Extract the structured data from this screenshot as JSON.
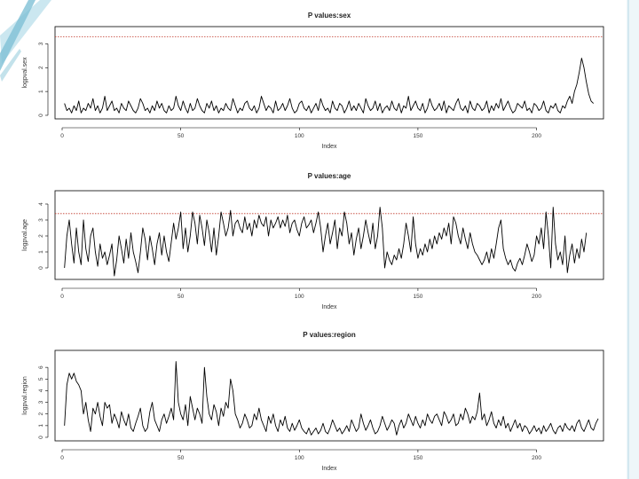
{
  "colors": {
    "series": "#000000",
    "threshold": "#c0392b",
    "slide_accent": "#9fd0df"
  },
  "chart_data": [
    {
      "type": "line",
      "title": "P values:sex",
      "xlabel": "Index",
      "ylabel": "logpval.sex",
      "xlim": [
        0,
        220
      ],
      "ylim": [
        0,
        3.5
      ],
      "xticks": [
        "0",
        "50",
        "100",
        "150",
        "200"
      ],
      "yticks": [
        "0",
        "1",
        "2",
        "3"
      ],
      "threshold": 3.3,
      "y": [
        0.5,
        0.2,
        0.3,
        0.1,
        0.4,
        0.2,
        0.6,
        0.1,
        0.3,
        0.2,
        0.5,
        0.3,
        0.7,
        0.2,
        0.4,
        0.1,
        0.3,
        0.8,
        0.2,
        0.4,
        0.6,
        0.2,
        0.3,
        0.1,
        0.5,
        0.3,
        0.2,
        0.6,
        0.4,
        0.2,
        0.1,
        0.3,
        0.7,
        0.5,
        0.2,
        0.3,
        0.1,
        0.4,
        0.2,
        0.6,
        0.3,
        0.5,
        0.2,
        0.1,
        0.4,
        0.2,
        0.3,
        0.8,
        0.4,
        0.2,
        0.6,
        0.3,
        0.1,
        0.5,
        0.2,
        0.3,
        0.7,
        0.4,
        0.2,
        0.1,
        0.5,
        0.3,
        0.6,
        0.2,
        0.4,
        0.1,
        0.3,
        0.2,
        0.5,
        0.3,
        0.2,
        0.7,
        0.4,
        0.1,
        0.3,
        0.2,
        0.5,
        0.6,
        0.3,
        0.2,
        0.4,
        0.1,
        0.3,
        0.8,
        0.5,
        0.2,
        0.4,
        0.3,
        0.1,
        0.6,
        0.2,
        0.3,
        0.5,
        0.2,
        0.4,
        0.7,
        0.3,
        0.1,
        0.2,
        0.5,
        0.6,
        0.3,
        0.2,
        0.4,
        0.1,
        0.3,
        0.5,
        0.2,
        0.7,
        0.4,
        0.2,
        0.3,
        0.1,
        0.6,
        0.3,
        0.2,
        0.5,
        0.4,
        0.1,
        0.3,
        0.6,
        0.2,
        0.4,
        0.2,
        0.5,
        0.3,
        0.1,
        0.7,
        0.4,
        0.2,
        0.3,
        0.6,
        0.2,
        0.5,
        0.1,
        0.3,
        0.4,
        0.2,
        0.6,
        0.3,
        0.2,
        0.5,
        0.1,
        0.4,
        0.3,
        0.8,
        0.2,
        0.4,
        0.6,
        0.3,
        0.2,
        0.5,
        0.1,
        0.3,
        0.7,
        0.4,
        0.2,
        0.3,
        0.5,
        0.2,
        0.6,
        0.1,
        0.4,
        0.3,
        0.2,
        0.5,
        0.7,
        0.3,
        0.2,
        0.4,
        0.1,
        0.6,
        0.3,
        0.2,
        0.5,
        0.4,
        0.2,
        0.3,
        0.6,
        0.1,
        0.4,
        0.2,
        0.5,
        0.3,
        0.7,
        0.2,
        0.4,
        0.6,
        0.3,
        0.1,
        0.2,
        0.5,
        0.4,
        0.3,
        0.6,
        0.2,
        0.3,
        0.1,
        0.5,
        0.4,
        0.2,
        0.3,
        0.6,
        0.2,
        0.1,
        0.4,
        0.3,
        0.5,
        0.2,
        0.1,
        0.4,
        0.3,
        0.6,
        0.8,
        0.5,
        1.0,
        1.3,
        1.8,
        2.4,
        2.0,
        1.4,
        0.9,
        0.6,
        0.5
      ]
    },
    {
      "type": "line",
      "title": "P values:age",
      "xlabel": "Index",
      "ylabel": "logpval.age",
      "xlim": [
        0,
        220
      ],
      "ylim": [
        -0.5,
        4.5
      ],
      "xticks": [
        "0",
        "50",
        "100",
        "150",
        "200"
      ],
      "yticks": [
        "0",
        "1",
        "2",
        "3",
        "4"
      ],
      "threshold": 3.4,
      "y": [
        0.0,
        2.0,
        3.0,
        1.5,
        0.3,
        2.5,
        1.0,
        0.2,
        3.0,
        1.2,
        0.4,
        2.0,
        2.5,
        1.0,
        0.1,
        1.5,
        0.6,
        1.0,
        0.2,
        0.8,
        1.5,
        -0.5,
        0.5,
        2.0,
        1.2,
        0.3,
        1.8,
        0.6,
        2.2,
        1.0,
        0.4,
        -0.3,
        1.0,
        2.5,
        1.8,
        0.5,
        2.0,
        1.2,
        0.2,
        1.5,
        2.2,
        0.8,
        2.0,
        1.0,
        0.4,
        1.6,
        2.8,
        1.8,
        2.5,
        3.5,
        1.2,
        2.5,
        1.0,
        2.0,
        3.5,
        2.8,
        1.5,
        3.3,
        2.5,
        1.4,
        3.0,
        2.2,
        1.0,
        2.5,
        0.8,
        2.0,
        3.5,
        2.8,
        2.0,
        2.5,
        3.6,
        2.0,
        2.8,
        3.0,
        2.5,
        2.2,
        3.2,
        2.4,
        2.8,
        2.0,
        3.0,
        2.5,
        3.3,
        2.8,
        2.6,
        3.2,
        2.0,
        3.0,
        2.5,
        2.8,
        3.2,
        2.5,
        3.0,
        2.6,
        3.3,
        2.2,
        2.8,
        3.0,
        2.4,
        2.0,
        2.8,
        3.2,
        2.5,
        2.7,
        3.0,
        2.2,
        2.8,
        3.5,
        2.5,
        1.0,
        2.0,
        2.8,
        1.5,
        2.2,
        3.0,
        1.2,
        2.5,
        2.0,
        3.5,
        2.8,
        1.5,
        2.2,
        0.8,
        1.8,
        2.5,
        1.2,
        2.0,
        3.0,
        2.2,
        1.5,
        2.8,
        1.2,
        2.0,
        3.8,
        2.5,
        0.0,
        1.0,
        0.5,
        0.2,
        0.8,
        0.5,
        1.2,
        0.6,
        1.5,
        2.8,
        2.0,
        1.0,
        3.2,
        1.5,
        0.6,
        1.2,
        0.8,
        1.5,
        1.0,
        1.8,
        1.2,
        2.0,
        1.5,
        2.2,
        1.8,
        2.5,
        2.0,
        2.8,
        1.5,
        3.2,
        2.8,
        2.0,
        1.5,
        2.5,
        1.8,
        1.2,
        2.2,
        1.5,
        1.0,
        0.8,
        0.5,
        0.2,
        0.5,
        1.0,
        0.3,
        1.2,
        0.6,
        1.5,
        2.5,
        3.0,
        1.2,
        0.6,
        0.2,
        0.5,
        0.0,
        -0.2,
        0.3,
        0.6,
        0.2,
        0.8,
        1.5,
        1.0,
        0.4,
        0.8,
        2.0,
        1.5,
        2.5,
        1.2,
        3.5,
        2.0,
        0.0,
        3.8,
        1.5,
        0.5,
        1.0,
        0.2,
        2.0,
        -0.3,
        0.8,
        1.5,
        0.3,
        1.2,
        0.6,
        1.8,
        1.0,
        2.2
      ]
    },
    {
      "type": "line",
      "title": "P values:region",
      "xlabel": "Index",
      "ylabel": "logpval.region",
      "xlim": [
        0,
        220
      ],
      "ylim": [
        0,
        7
      ],
      "xticks": [
        "0",
        "50",
        "100",
        "150",
        "200"
      ],
      "yticks": [
        "0",
        "1",
        "2",
        "3",
        "4",
        "5",
        "6"
      ],
      "y": [
        1.0,
        4.5,
        5.5,
        5.0,
        5.5,
        4.8,
        4.5,
        4.0,
        2.0,
        3.0,
        1.5,
        0.5,
        2.5,
        2.0,
        3.0,
        1.8,
        1.0,
        3.0,
        2.5,
        2.8,
        1.2,
        2.0,
        1.5,
        0.8,
        2.2,
        1.5,
        1.0,
        2.0,
        0.8,
        0.5,
        1.2,
        1.8,
        2.5,
        1.0,
        0.5,
        0.8,
        2.2,
        3.0,
        1.5,
        1.0,
        0.5,
        1.5,
        2.0,
        1.2,
        1.8,
        2.5,
        1.5,
        6.5,
        3.0,
        2.0,
        1.5,
        2.8,
        1.0,
        3.5,
        2.5,
        1.5,
        2.5,
        2.0,
        1.2,
        6.0,
        3.5,
        2.0,
        1.5,
        2.8,
        2.2,
        1.0,
        2.5,
        1.8,
        3.0,
        2.5,
        5.0,
        4.0,
        2.0,
        1.5,
        0.8,
        1.2,
        2.0,
        1.5,
        0.8,
        1.0,
        2.0,
        1.5,
        2.5,
        1.5,
        1.0,
        0.5,
        1.8,
        1.2,
        2.0,
        1.0,
        0.5,
        1.5,
        1.0,
        1.8,
        0.8,
        0.5,
        1.2,
        0.6,
        1.0,
        1.5,
        0.8,
        0.5,
        0.3,
        0.8,
        0.2,
        0.5,
        0.8,
        0.3,
        0.6,
        1.2,
        0.5,
        0.3,
        0.8,
        1.5,
        1.0,
        0.5,
        0.8,
        0.3,
        0.6,
        1.0,
        0.5,
        1.5,
        1.0,
        0.5,
        0.8,
        2.0,
        1.2,
        0.6,
        1.0,
        1.5,
        0.8,
        0.3,
        0.5,
        1.0,
        1.8,
        1.2,
        0.6,
        1.0,
        1.5,
        1.2,
        0.2,
        1.0,
        1.5,
        0.8,
        1.2,
        2.0,
        1.5,
        1.0,
        1.8,
        1.2,
        0.8,
        1.5,
        1.0,
        2.0,
        1.5,
        1.2,
        1.8,
        2.0,
        1.5,
        1.0,
        2.2,
        1.8,
        1.2,
        1.5,
        2.0,
        1.0,
        1.2,
        2.0,
        1.5,
        2.5,
        2.0,
        1.2,
        1.8,
        1.5,
        2.2,
        3.8,
        1.5,
        2.0,
        1.0,
        1.5,
        2.2,
        1.2,
        0.8,
        1.5,
        1.0,
        1.8,
        0.8,
        1.2,
        0.5,
        1.0,
        1.5,
        0.8,
        1.2,
        0.5,
        1.0,
        0.8,
        0.3,
        0.6,
        1.0,
        0.5,
        0.8,
        0.3,
        1.0,
        0.5,
        0.8,
        1.2,
        0.6,
        0.3,
        0.8,
        1.0,
        0.5,
        1.2,
        0.8,
        0.6,
        1.0,
        0.5,
        1.2,
        1.5,
        0.8,
        0.5,
        1.0,
        1.5,
        0.8,
        0.6,
        1.2,
        1.6
      ]
    }
  ]
}
